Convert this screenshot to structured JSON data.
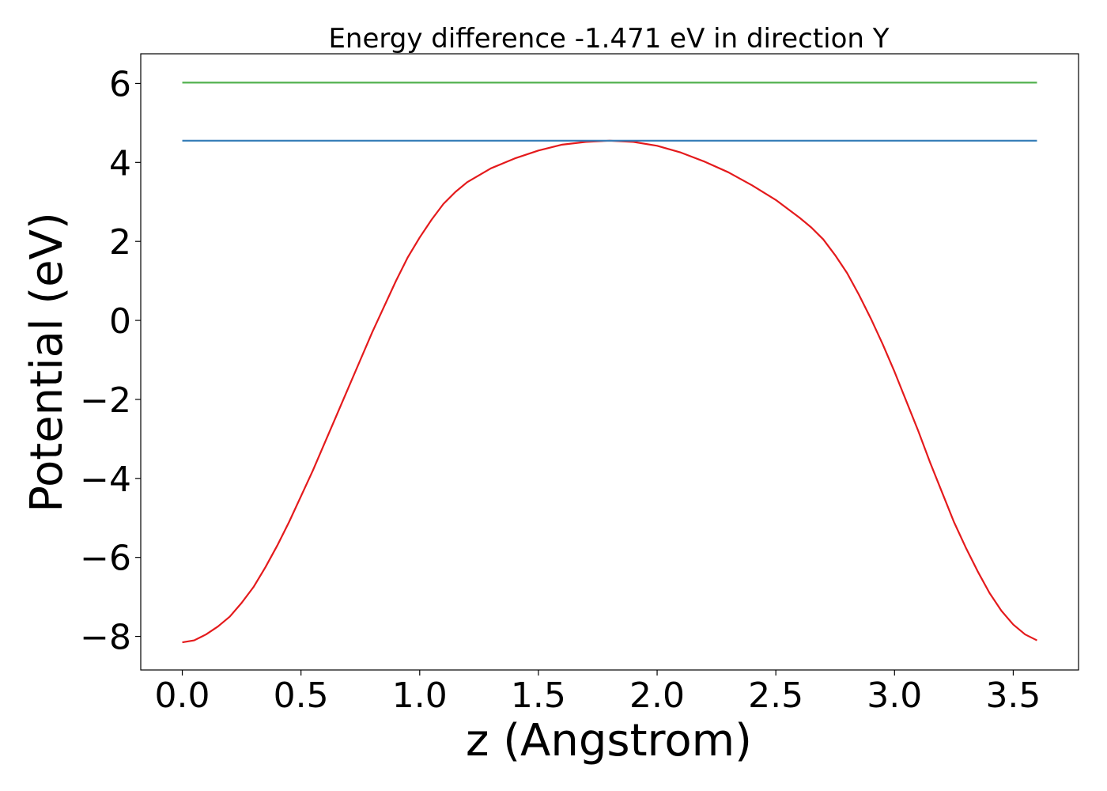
{
  "chart_data": {
    "type": "line",
    "title": "Energy difference -1.471 eV in direction Y",
    "xlabel": "z (Angstrom)",
    "ylabel": "Potential (eV)",
    "xlim": [
      -0.175,
      3.775
    ],
    "ylim": [
      -8.85,
      6.75
    ],
    "xticks": [
      0.0,
      0.5,
      1.0,
      1.5,
      2.0,
      2.5,
      3.0,
      3.5
    ],
    "xtick_labels": [
      "0.0",
      "0.5",
      "1.0",
      "1.5",
      "2.0",
      "2.5",
      "3.0",
      "3.5"
    ],
    "yticks": [
      -8,
      -6,
      -4,
      -2,
      0,
      2,
      4,
      6
    ],
    "ytick_labels": [
      "−8",
      "−6",
      "−4",
      "−2",
      "0",
      "2",
      "4",
      "6"
    ],
    "grid": false,
    "legend": "none",
    "series": [
      {
        "color": "#e41a1c",
        "x": [
          0.0,
          0.05,
          0.1,
          0.15,
          0.2,
          0.25,
          0.3,
          0.35,
          0.4,
          0.45,
          0.5,
          0.55,
          0.6,
          0.65,
          0.7,
          0.75,
          0.8,
          0.85,
          0.9,
          0.95,
          1.0,
          1.05,
          1.1,
          1.15,
          1.2,
          1.3,
          1.4,
          1.5,
          1.6,
          1.7,
          1.8,
          1.9,
          2.0,
          2.1,
          2.2,
          2.3,
          2.4,
          2.5,
          2.6,
          2.65,
          2.7,
          2.75,
          2.8,
          2.85,
          2.9,
          2.95,
          3.0,
          3.05,
          3.1,
          3.15,
          3.2,
          3.25,
          3.3,
          3.35,
          3.4,
          3.45,
          3.5,
          3.55,
          3.6
        ],
        "y": [
          -8.15,
          -8.1,
          -7.95,
          -7.75,
          -7.5,
          -7.15,
          -6.75,
          -6.25,
          -5.7,
          -5.1,
          -4.45,
          -3.8,
          -3.1,
          -2.4,
          -1.7,
          -1.0,
          -0.3,
          0.35,
          1.0,
          1.6,
          2.1,
          2.55,
          2.95,
          3.25,
          3.5,
          3.85,
          4.1,
          4.3,
          4.45,
          4.52,
          4.55,
          4.52,
          4.42,
          4.25,
          4.02,
          3.75,
          3.42,
          3.05,
          2.6,
          2.35,
          2.05,
          1.65,
          1.2,
          0.65,
          0.05,
          -0.6,
          -1.3,
          -2.05,
          -2.8,
          -3.6,
          -4.35,
          -5.1,
          -5.75,
          -6.35,
          -6.9,
          -7.35,
          -7.7,
          -7.95,
          -8.1
        ]
      },
      {
        "color": "#377eb8",
        "x": [
          0.0,
          3.6
        ],
        "y": [
          4.55,
          4.55
        ]
      },
      {
        "color": "#4daf4a",
        "x": [
          0.0,
          3.6
        ],
        "y": [
          6.02,
          6.02
        ]
      }
    ]
  }
}
